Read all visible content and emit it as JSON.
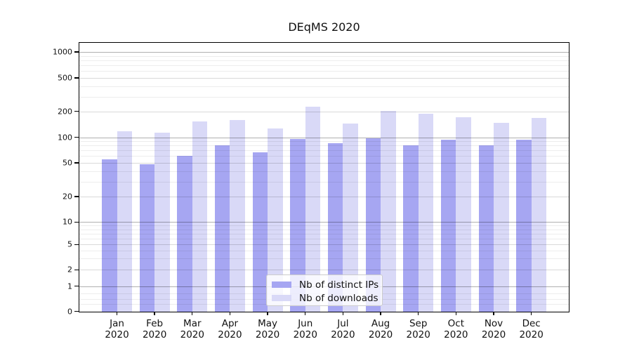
{
  "chart_data": {
    "type": "bar",
    "title": "DEqMS 2020",
    "categories": [
      "Jan",
      "Feb",
      "Mar",
      "Apr",
      "May",
      "Jun",
      "Jul",
      "Aug",
      "Sep",
      "Oct",
      "Nov",
      "Dec"
    ],
    "category_year": "2020",
    "series": [
      {
        "name": "Nb of distinct IPs",
        "color": "#a6a6f2",
        "values": [
          55,
          48,
          61,
          80,
          66,
          95,
          85,
          97,
          80,
          94,
          80,
          94
        ]
      },
      {
        "name": "Nb of downloads",
        "color": "#d9d9f7",
        "values": [
          118,
          113,
          152,
          160,
          128,
          228,
          145,
          205,
          190,
          170,
          148,
          167
        ]
      }
    ],
    "y_axis": {
      "scale": "symlog",
      "ticks": [
        0,
        1,
        2,
        5,
        10,
        20,
        50,
        100,
        200,
        500,
        1000
      ],
      "range": [
        0,
        1000
      ]
    },
    "legend": {
      "position": "inside-bottom-center"
    },
    "grid": {
      "shown": true,
      "major_line_color": "#b0b0b0",
      "light_line_color": "#d9d9d9",
      "minor_line_color": "#eeeeee"
    }
  }
}
